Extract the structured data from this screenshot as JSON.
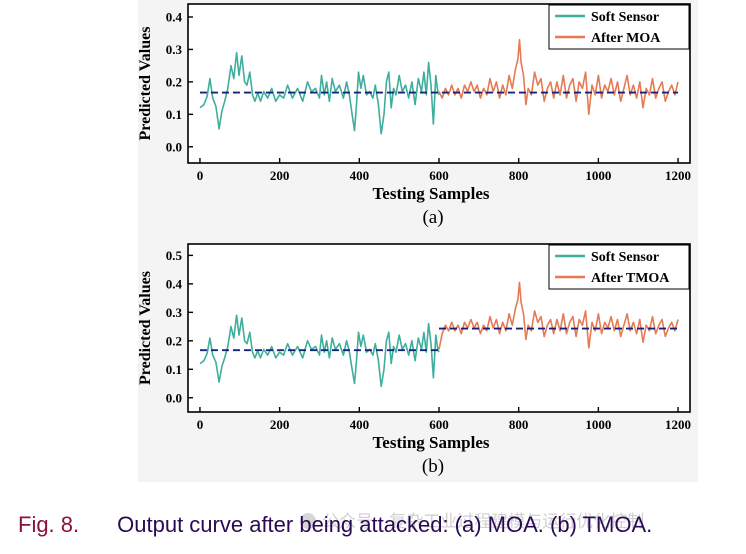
{
  "chart_data": [
    {
      "type": "line",
      "panel_label": "(a)",
      "xlabel": "Testing Samples",
      "ylabel": "Predicted Values",
      "xlim": [
        -30,
        1230
      ],
      "ylim": [
        -0.05,
        0.44
      ],
      "xticks": [
        0,
        200,
        400,
        600,
        800,
        1000,
        1200
      ],
      "yticks": [
        0.0,
        0.1,
        0.2,
        0.3,
        0.4
      ],
      "ytick_labels": [
        "0.0",
        "0.1",
        "0.2",
        "0.3",
        "0.4"
      ],
      "legend_position": "top-right",
      "colors": {
        "soft_sensor": "#3fae9c",
        "attack": "#e57a55",
        "dashed": "#14237a"
      },
      "series": [
        {
          "name": "Soft Sensor",
          "x_range": [
            0,
            600
          ]
        },
        {
          "name": "After MOA",
          "x_range": [
            600,
            1200
          ]
        }
      ],
      "reference_lines": [
        {
          "x": [
            0,
            1200
          ],
          "y": 0.167
        }
      ]
    },
    {
      "type": "line",
      "panel_label": "(b)",
      "xlabel": "Testing Samples",
      "ylabel": "Predicted Values",
      "xlim": [
        -30,
        1230
      ],
      "ylim": [
        -0.05,
        0.54
      ],
      "xticks": [
        0,
        200,
        400,
        600,
        800,
        1000,
        1200
      ],
      "yticks": [
        0.0,
        0.1,
        0.2,
        0.3,
        0.4,
        0.5
      ],
      "ytick_labels": [
        "0.0",
        "0.1",
        "0.2",
        "0.3",
        "0.4",
        "0.5"
      ],
      "legend_position": "top-right",
      "colors": {
        "soft_sensor": "#3fae9c",
        "attack": "#e57a55",
        "dashed": "#14237a"
      },
      "series": [
        {
          "name": "Soft Sensor",
          "x_range": [
            0,
            600
          ]
        },
        {
          "name": "After TMOA",
          "x_range": [
            600,
            1200
          ]
        }
      ],
      "reference_lines": [
        {
          "x": [
            0,
            600
          ],
          "y": 0.167
        },
        {
          "x": [
            600,
            1200
          ],
          "y": 0.243
        }
      ]
    }
  ],
  "base_keys": [
    [
      0,
      0.12
    ],
    [
      10,
      0.13
    ],
    [
      18,
      0.155
    ],
    [
      25,
      0.21
    ],
    [
      32,
      0.15
    ],
    [
      40,
      0.125
    ],
    [
      48,
      0.055
    ],
    [
      55,
      0.11
    ],
    [
      62,
      0.14
    ],
    [
      70,
      0.18
    ],
    [
      78,
      0.25
    ],
    [
      85,
      0.21
    ],
    [
      92,
      0.29
    ],
    [
      98,
      0.22
    ],
    [
      105,
      0.28
    ],
    [
      112,
      0.2
    ],
    [
      118,
      0.19
    ],
    [
      125,
      0.23
    ],
    [
      132,
      0.16
    ],
    [
      138,
      0.14
    ],
    [
      145,
      0.165
    ],
    [
      152,
      0.14
    ],
    [
      160,
      0.17
    ],
    [
      170,
      0.15
    ],
    [
      180,
      0.18
    ],
    [
      190,
      0.14
    ],
    [
      200,
      0.16
    ],
    [
      210,
      0.15
    ],
    [
      220,
      0.19
    ],
    [
      232,
      0.15
    ],
    [
      245,
      0.18
    ],
    [
      258,
      0.14
    ],
    [
      270,
      0.2
    ],
    [
      280,
      0.17
    ],
    [
      290,
      0.18
    ],
    [
      300,
      0.15
    ],
    [
      305,
      0.22
    ],
    [
      312,
      0.16
    ],
    [
      318,
      0.2
    ],
    [
      325,
      0.14
    ],
    [
      332,
      0.21
    ],
    [
      340,
      0.17
    ],
    [
      350,
      0.19
    ],
    [
      360,
      0.15
    ],
    [
      368,
      0.2
    ],
    [
      375,
      0.16
    ],
    [
      382,
      0.1
    ],
    [
      388,
      0.05
    ],
    [
      393,
      0.13
    ],
    [
      398,
      0.23
    ],
    [
      404,
      0.18
    ],
    [
      410,
      0.22
    ],
    [
      418,
      0.16
    ],
    [
      426,
      0.17
    ],
    [
      434,
      0.15
    ],
    [
      440,
      0.19
    ],
    [
      448,
      0.13
    ],
    [
      455,
      0.04
    ],
    [
      462,
      0.1
    ],
    [
      468,
      0.2
    ],
    [
      474,
      0.23
    ],
    [
      480,
      0.12
    ],
    [
      486,
      0.18
    ],
    [
      492,
      0.16
    ],
    [
      500,
      0.22
    ],
    [
      508,
      0.17
    ],
    [
      516,
      0.19
    ],
    [
      524,
      0.15
    ],
    [
      532,
      0.2
    ],
    [
      540,
      0.13
    ],
    [
      548,
      0.21
    ],
    [
      556,
      0.17
    ],
    [
      562,
      0.23
    ],
    [
      568,
      0.16
    ],
    [
      574,
      0.26
    ],
    [
      580,
      0.19
    ],
    [
      586,
      0.07
    ],
    [
      592,
      0.22
    ],
    [
      597,
      0.17
    ],
    [
      600,
      0.16
    ]
  ],
  "attack_keys": [
    [
      600,
      0.17
    ],
    [
      608,
      0.15
    ],
    [
      616,
      0.18
    ],
    [
      624,
      0.16
    ],
    [
      632,
      0.19
    ],
    [
      640,
      0.16
    ],
    [
      648,
      0.18
    ],
    [
      656,
      0.15
    ],
    [
      664,
      0.19
    ],
    [
      672,
      0.17
    ],
    [
      680,
      0.2
    ],
    [
      688,
      0.17
    ],
    [
      696,
      0.19
    ],
    [
      704,
      0.15
    ],
    [
      712,
      0.18
    ],
    [
      720,
      0.16
    ],
    [
      728,
      0.21
    ],
    [
      736,
      0.17
    ],
    [
      744,
      0.2
    ],
    [
      752,
      0.15
    ],
    [
      760,
      0.19
    ],
    [
      768,
      0.16
    ],
    [
      776,
      0.22
    ],
    [
      784,
      0.18
    ],
    [
      792,
      0.24
    ],
    [
      798,
      0.27
    ],
    [
      802,
      0.33
    ],
    [
      806,
      0.26
    ],
    [
      812,
      0.22
    ],
    [
      818,
      0.13
    ],
    [
      824,
      0.18
    ],
    [
      832,
      0.16
    ],
    [
      840,
      0.23
    ],
    [
      848,
      0.19
    ],
    [
      856,
      0.21
    ],
    [
      864,
      0.14
    ],
    [
      872,
      0.18
    ],
    [
      880,
      0.2
    ],
    [
      888,
      0.15
    ],
    [
      896,
      0.2
    ],
    [
      904,
      0.16
    ],
    [
      912,
      0.22
    ],
    [
      920,
      0.15
    ],
    [
      928,
      0.19
    ],
    [
      936,
      0.21
    ],
    [
      944,
      0.14
    ],
    [
      952,
      0.2
    ],
    [
      960,
      0.18
    ],
    [
      968,
      0.23
    ],
    [
      976,
      0.1
    ],
    [
      984,
      0.19
    ],
    [
      992,
      0.16
    ],
    [
      1000,
      0.22
    ],
    [
      1008,
      0.15
    ],
    [
      1016,
      0.19
    ],
    [
      1024,
      0.17
    ],
    [
      1032,
      0.21
    ],
    [
      1040,
      0.16
    ],
    [
      1048,
      0.2
    ],
    [
      1056,
      0.14
    ],
    [
      1064,
      0.18
    ],
    [
      1072,
      0.22
    ],
    [
      1080,
      0.16
    ],
    [
      1088,
      0.19
    ],
    [
      1096,
      0.15
    ],
    [
      1104,
      0.2
    ],
    [
      1112,
      0.12
    ],
    [
      1120,
      0.18
    ],
    [
      1128,
      0.16
    ],
    [
      1136,
      0.21
    ],
    [
      1144,
      0.15
    ],
    [
      1152,
      0.18
    ],
    [
      1160,
      0.2
    ],
    [
      1168,
      0.14
    ],
    [
      1176,
      0.17
    ],
    [
      1184,
      0.19
    ],
    [
      1192,
      0.16
    ],
    [
      1200,
      0.2
    ]
  ],
  "tmoa_offset": 0.075,
  "caption": {
    "label": "Fig. 8.",
    "text": "Output curve after being attacked: (a) MOA. (b) TMOA."
  },
  "watermark": "公众号 · 复杂工业过程建模与运行优化控制"
}
